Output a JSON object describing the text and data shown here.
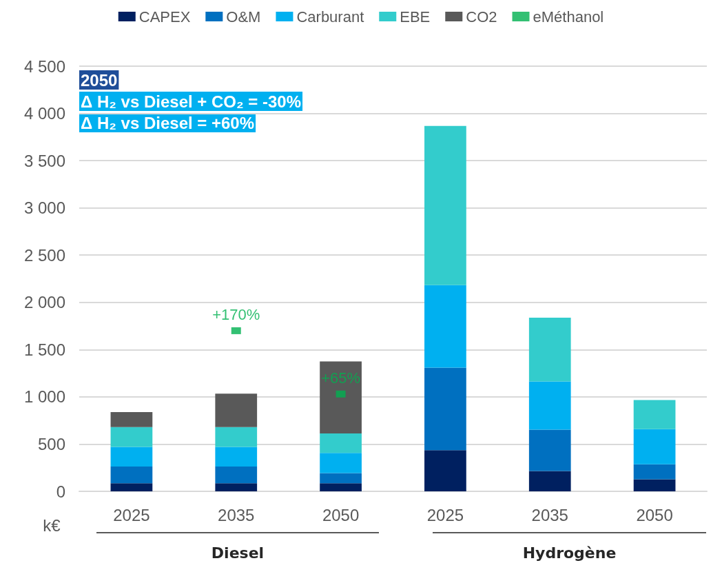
{
  "chart_data": {
    "type": "bar",
    "stacked": true,
    "categories": [
      "2025",
      "2035",
      "2050",
      "2025",
      "2035",
      "2050"
    ],
    "series": [
      {
        "name": "CAPEX",
        "color": "#002060",
        "values": [
          85,
          85,
          85,
          435,
          215,
          128
        ]
      },
      {
        "name": "O&M",
        "color": "#0070c0",
        "values": [
          177,
          177,
          109,
          874,
          437,
          158
        ]
      },
      {
        "name": "Carburant",
        "color": "#00b0f0",
        "values": [
          209,
          209,
          212,
          874,
          511,
          373
        ]
      },
      {
        "name": "EBE",
        "color": "#33cccc",
        "values": [
          209,
          209,
          206,
          1684,
          675,
          307
        ]
      },
      {
        "name": "CO2",
        "color": "#595959",
        "values": [
          158,
          353,
          763,
          0,
          0,
          0
        ]
      },
      {
        "name": "eMéthanol",
        "type": "scatter",
        "color": "#00b050",
        "values": [
          null,
          1700,
          1030,
          null,
          null,
          null
        ]
      }
    ],
    "ylabel": "k€",
    "ylim": [
      0,
      4500
    ],
    "yticks": [
      0,
      500,
      {
        "value": 1000,
        "label": "1 000"
      },
      {
        "value": 1500,
        "label": "1 500"
      },
      {
        "value": 2000,
        "label": "2 000"
      },
      {
        "value": 2500,
        "label": "2 500"
      },
      {
        "value": 3000,
        "label": "3 000"
      },
      {
        "value": 3500,
        "label": "3 500"
      },
      {
        "value": 4000,
        "label": "4 000"
      },
      {
        "value": 4500,
        "label": "4 500"
      }
    ],
    "grid": "y",
    "legend": "top",
    "annotations": [
      "2050",
      "Δ H₂ vs Diesel + CO₂ = -30%",
      "Δ H₂ vs Diesel = +60%",
      "Diesel",
      "Hydrogène",
      {
        "text": "+170%",
        "x": "2035",
        "y": 1700
      },
      {
        "text": "+65%",
        "x": "2050",
        "y": 1030
      }
    ]
  }
}
